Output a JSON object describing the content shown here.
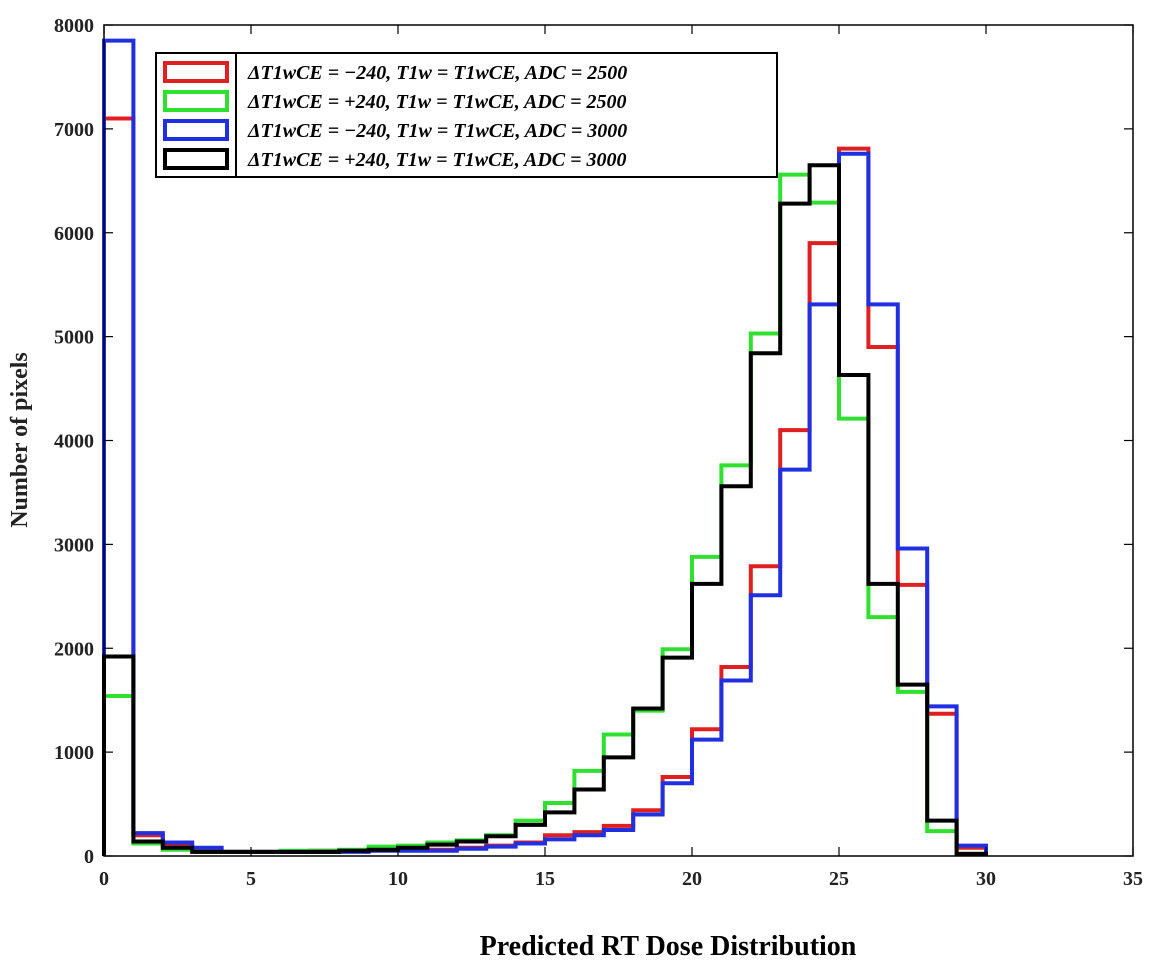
{
  "chart_data": {
    "type": "histogram",
    "xlabel": "Predicted RT Dose Distribution",
    "ylabel": "Number of pixels",
    "xlim": [
      0,
      35
    ],
    "ylim": [
      0,
      8000
    ],
    "xticks": [
      "0",
      "5",
      "10",
      "15",
      "20",
      "25",
      "30",
      "35"
    ],
    "yticks": [
      "0",
      "1000",
      "2000",
      "3000",
      "4000",
      "5000",
      "6000",
      "7000",
      "8000"
    ],
    "grid": false,
    "legend_position": "top-left",
    "bin_edges": [
      0,
      1,
      2,
      3,
      4,
      5,
      6,
      7,
      8,
      9,
      10,
      11,
      12,
      13,
      14,
      15,
      16,
      17,
      18,
      19,
      20,
      21,
      22,
      23,
      24,
      25,
      26,
      27,
      28,
      29,
      30
    ],
    "series": [
      {
        "name": "ΔT1wCE = −240, T1w = T1wCE, ADC = 2500",
        "color": "#e02020",
        "values": [
          7100,
          200,
          100,
          70,
          40,
          40,
          40,
          50,
          50,
          60,
          60,
          60,
          80,
          100,
          130,
          200,
          230,
          290,
          440,
          760,
          1220,
          1820,
          2790,
          4100,
          5900,
          6810,
          4900,
          2610,
          1370,
          80
        ]
      },
      {
        "name": "ΔT1wCE = +240, T1w = T1wCE, ADC = 2500",
        "color": "#30e030",
        "values": [
          1540,
          120,
          60,
          40,
          40,
          40,
          50,
          50,
          60,
          90,
          100,
          130,
          150,
          200,
          340,
          510,
          820,
          1170,
          1400,
          1990,
          2880,
          3760,
          5030,
          6560,
          6290,
          4210,
          2300,
          1580,
          240,
          20
        ]
      },
      {
        "name": "ΔT1wCE = −240, T1w = T1wCE, ADC = 3000",
        "color": "#2030e0",
        "values": [
          7850,
          220,
          130,
          80,
          40,
          40,
          40,
          40,
          40,
          50,
          50,
          50,
          70,
          90,
          120,
          160,
          200,
          250,
          400,
          700,
          1120,
          1690,
          2510,
          3720,
          5310,
          6760,
          5310,
          2960,
          1440,
          100
        ]
      },
      {
        "name": "ΔT1wCE = +240, T1w = T1wCE, ADC = 3000",
        "color": "#000000",
        "values": [
          1920,
          140,
          80,
          40,
          40,
          40,
          40,
          40,
          50,
          60,
          80,
          110,
          140,
          190,
          300,
          420,
          640,
          950,
          1420,
          1910,
          2620,
          3560,
          4840,
          6280,
          6650,
          4630,
          2620,
          1650,
          340,
          20
        ]
      }
    ]
  }
}
